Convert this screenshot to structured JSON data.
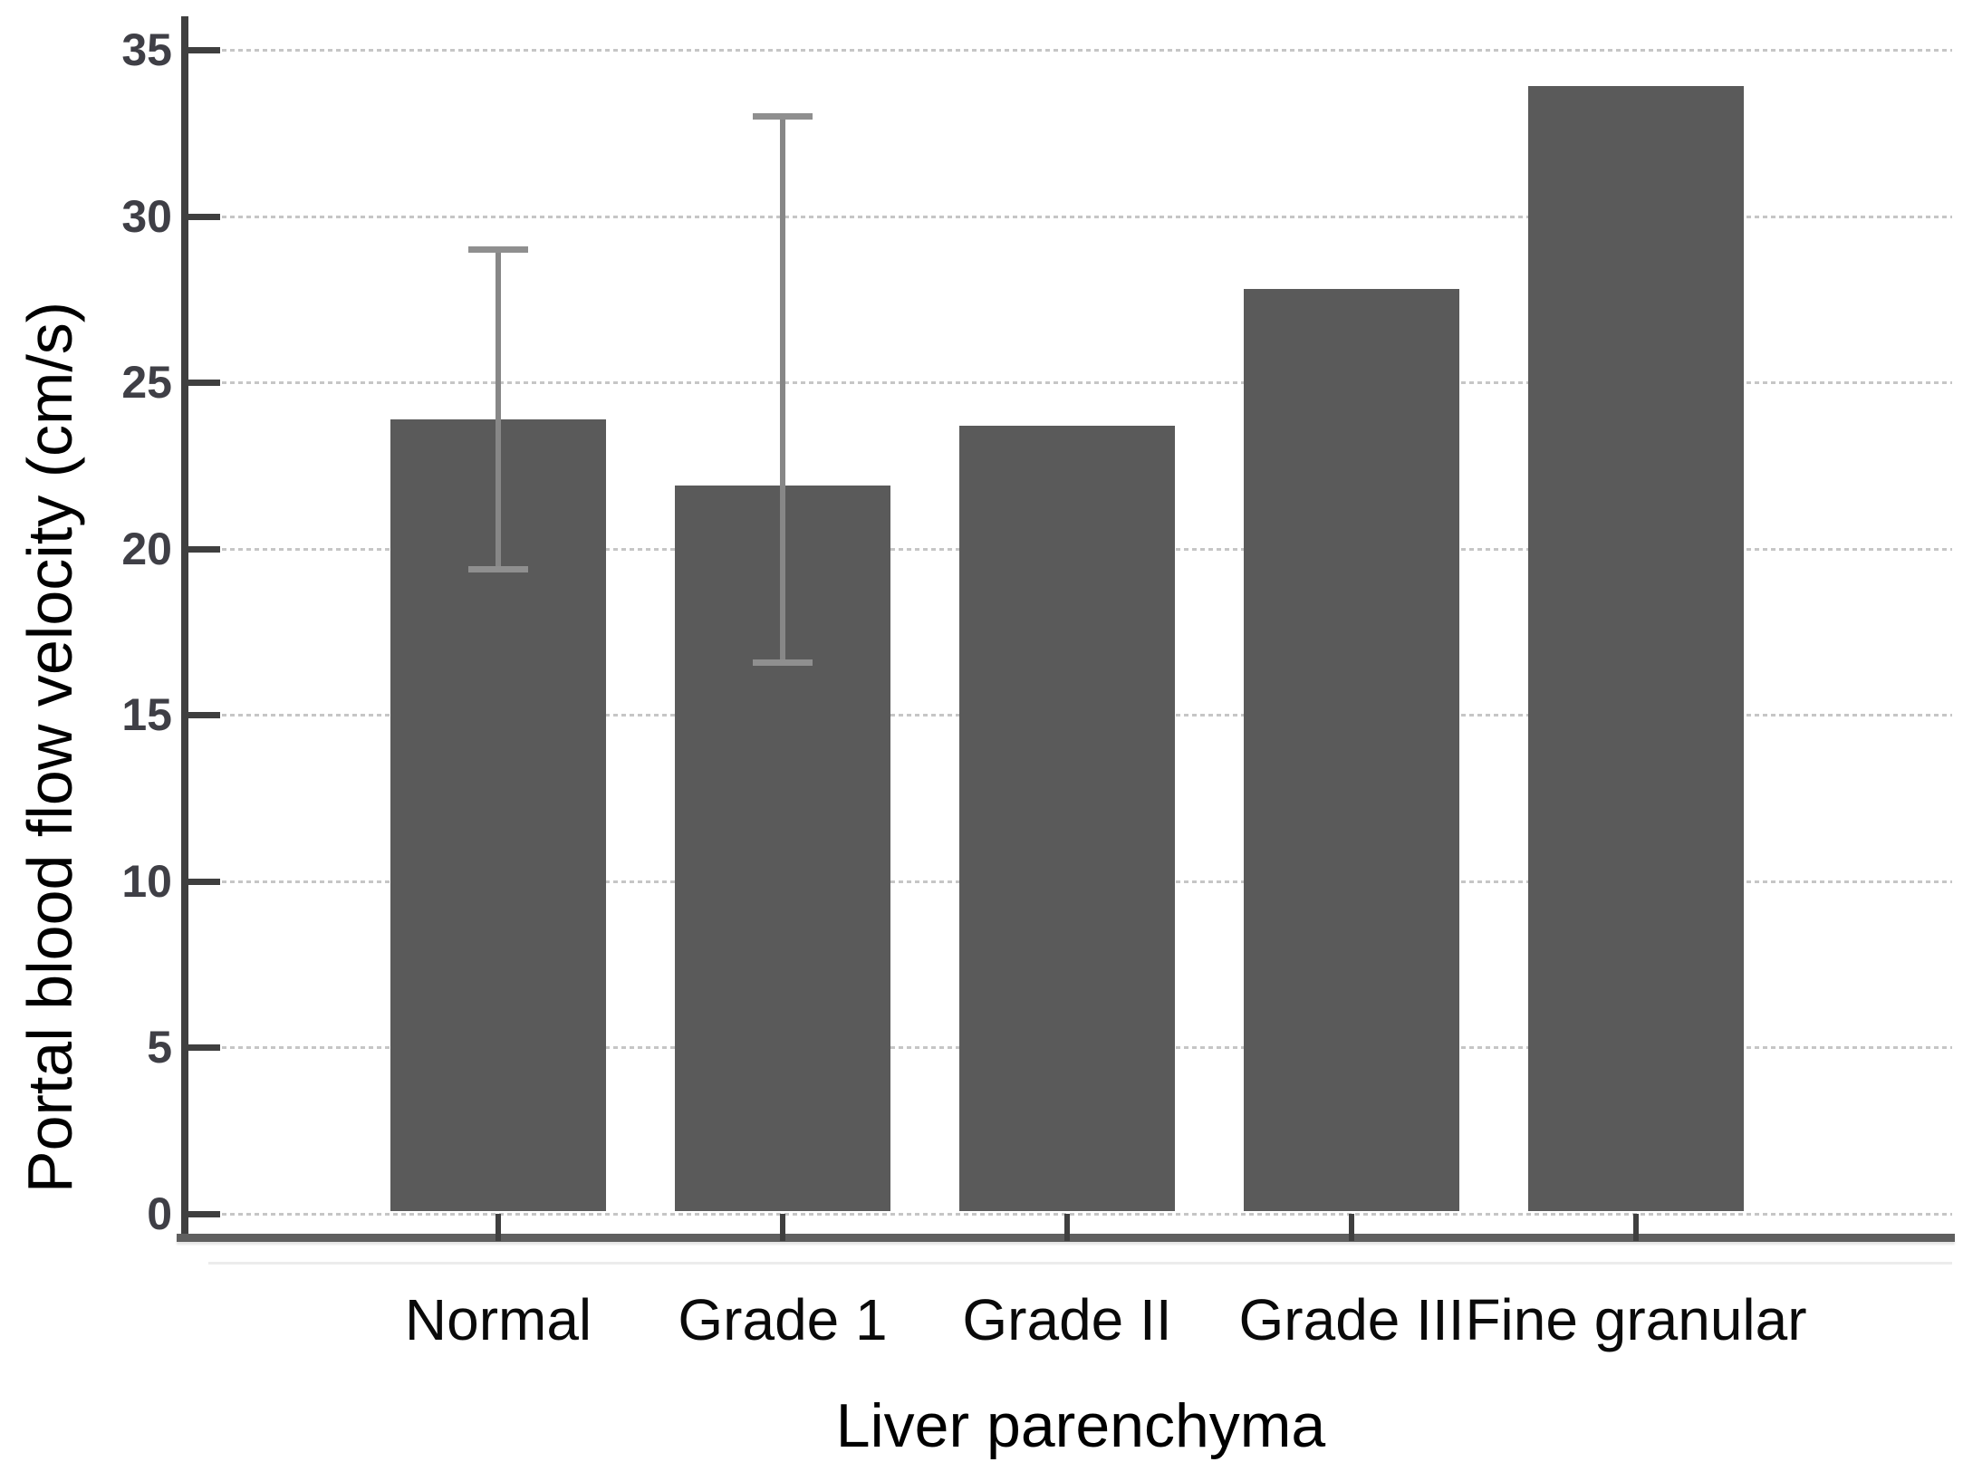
{
  "chart_data": {
    "type": "bar",
    "title": "",
    "xlabel": "Liver parenchyma",
    "ylabel": "Portal blood flow velocity (cm/s)",
    "categories": [
      "Normal",
      "Grade 1",
      "Grade II",
      "Grade III",
      "Fine granular"
    ],
    "values": [
      23.9,
      21.9,
      23.7,
      27.8,
      33.9
    ],
    "error_bars": [
      {
        "category": "Normal",
        "low": 19.4,
        "high": 29.0
      },
      {
        "category": "Grade 1",
        "low": 16.6,
        "high": 33.0
      },
      null,
      null,
      null
    ],
    "ylim": [
      0,
      35
    ],
    "yticks": [
      0,
      5,
      10,
      15,
      20,
      25,
      30,
      35
    ],
    "grid": "horizontal-dotted",
    "legend": "none",
    "colors": {
      "bar": "#5a5a5a",
      "error_bar": "#878787",
      "gridline": "#c6c6c6",
      "y_spine": "#3f3f3f",
      "x_spine": "#5f5f5f",
      "tick_label": "#3f3f46",
      "category_label": "#0a0a0a",
      "axis_title": "#000000",
      "background": "#ffffff"
    }
  }
}
